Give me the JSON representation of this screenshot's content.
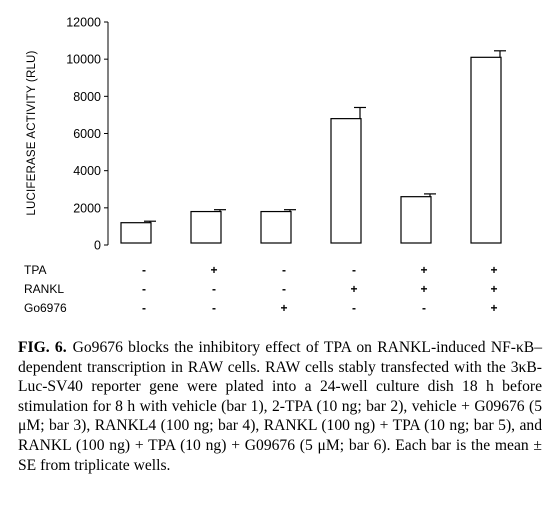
{
  "chart_data": {
    "type": "bar",
    "ylabel": "LUCIFERASE ACTIVITY (RLU)",
    "ylim": [
      0,
      12000
    ],
    "yticks": [
      0,
      2000,
      4000,
      6000,
      8000,
      10000,
      12000
    ],
    "ytick_labels": [
      "0",
      "2000",
      "4000",
      "6000",
      "8000",
      "10000",
      "12000"
    ],
    "grid": false,
    "bars": [
      {
        "value": 1200,
        "error": 80
      },
      {
        "value": 1800,
        "error": 100
      },
      {
        "value": 1800,
        "error": 100
      },
      {
        "value": 6800,
        "error": 600
      },
      {
        "value": 2600,
        "error": 150
      },
      {
        "value": 10100,
        "error": 350
      }
    ],
    "conditions": [
      {
        "label": "TPA",
        "signs": [
          "-",
          "+",
          "-",
          "-",
          "+",
          "+"
        ]
      },
      {
        "label": "RANKL",
        "signs": [
          "-",
          "-",
          "-",
          "+",
          "+",
          "+"
        ]
      },
      {
        "label": "Go6976",
        "signs": [
          "-",
          "-",
          "+",
          "-",
          "-",
          "+"
        ]
      }
    ]
  },
  "caption": {
    "label": "FIG. 6.",
    "text": "Go9676 blocks the inhibitory effect of TPA on RANKL-induced NF-κB–dependent transcription in RAW cells. RAW cells stably transfected with the 3κB-Luc-SV40 reporter gene were plated into a 24-well culture dish 18 h before stimulation for 8 h with vehicle (bar 1), 2-TPA (10 ng; bar 2), vehicle + G09676 (5 μM; bar 3), RANKL4 (100 ng; bar 4), RANKL (100 ng) + TPA (10 ng; bar 5), and RANKL (100 ng) + TPA (10 ng) + G09676 (5 μM; bar 6). Each bar is the mean ± SE from triplicate wells."
  }
}
